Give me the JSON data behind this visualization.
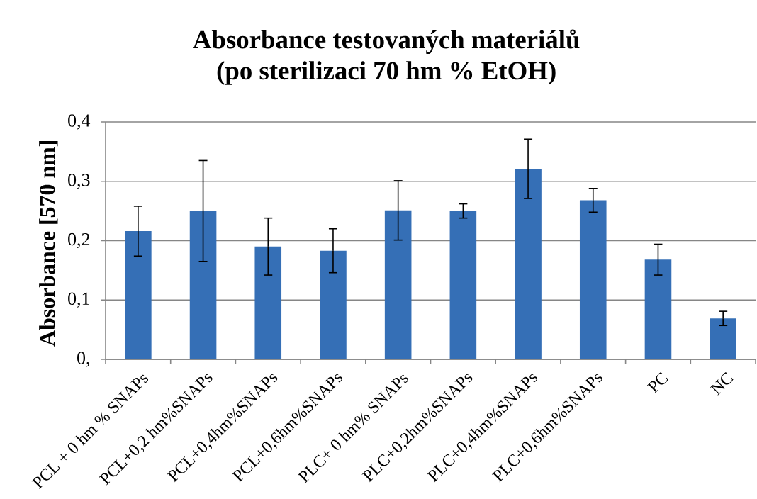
{
  "chart_data": {
    "type": "bar",
    "title": "Absorbance testovaných materiálů (po sterilizaci 70 hm % EtOH)",
    "ylabel": "Absorbance [570 nm]",
    "categories": [
      "PCL + 0 hm % SNAPs",
      "PCL+0,2 hm%SNAPs",
      "PCL+0,4hm%SNAPs",
      "PCL+0,6hm%SNAPs",
      "PLC+ 0 hm% SNAPs",
      "PLC+0,2hm%SNAPs",
      "PLC+0,4hm%SNAPs",
      "PLC+0,6hm%SNAPs",
      "PC",
      "NC"
    ],
    "values": [
      0.216,
      0.25,
      0.19,
      0.183,
      0.251,
      0.25,
      0.321,
      0.268,
      0.168,
      0.069
    ],
    "errors": [
      0.042,
      0.085,
      0.048,
      0.037,
      0.05,
      0.012,
      0.05,
      0.02,
      0.026,
      0.012
    ],
    "color": "#356fb6",
    "ylim": [
      0,
      0.4
    ],
    "yticks": [
      {
        "value": 0,
        "label": "0,"
      },
      {
        "value": 0.1,
        "label": "0,1"
      },
      {
        "value": 0.2,
        "label": "0,2"
      },
      {
        "value": 0.3,
        "label": "0,3"
      },
      {
        "value": 0.4,
        "label": "0,4"
      }
    ],
    "grid": "y"
  }
}
